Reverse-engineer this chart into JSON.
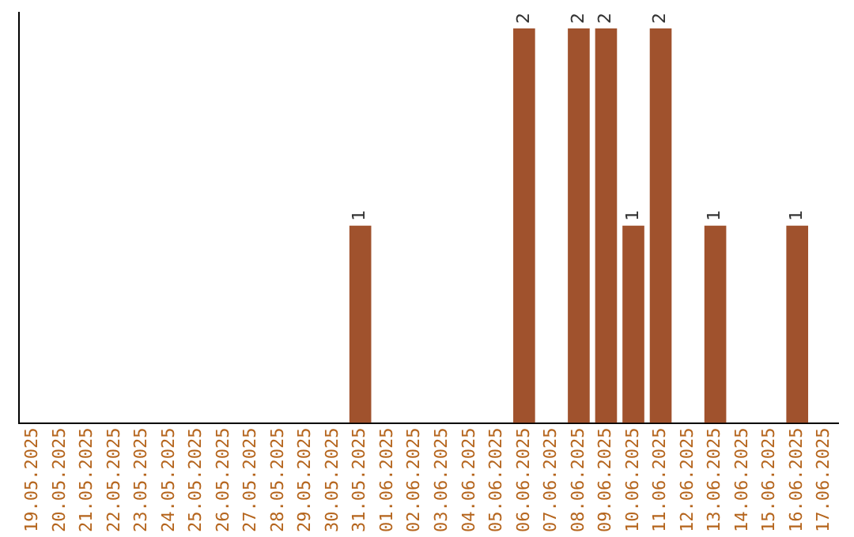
{
  "chart_data": {
    "type": "bar",
    "categories": [
      "19.05.2025",
      "20.05.2025",
      "21.05.2025",
      "22.05.2025",
      "23.05.2025",
      "24.05.2025",
      "25.05.2025",
      "26.05.2025",
      "27.05.2025",
      "28.05.2025",
      "29.05.2025",
      "30.05.2025",
      "31.05.2025",
      "01.06.2025",
      "02.06.2025",
      "03.06.2025",
      "04.06.2025",
      "05.06.2025",
      "06.06.2025",
      "07.06.2025",
      "08.06.2025",
      "09.06.2025",
      "10.06.2025",
      "11.06.2025",
      "12.06.2025",
      "13.06.2025",
      "14.06.2025",
      "15.06.2025",
      "16.06.2025",
      "17.06.2025"
    ],
    "values": [
      null,
      null,
      null,
      null,
      null,
      null,
      null,
      null,
      null,
      null,
      null,
      null,
      1,
      null,
      null,
      null,
      null,
      null,
      2,
      null,
      2,
      2,
      1,
      2,
      null,
      1,
      null,
      null,
      1,
      null
    ],
    "data_labels": true,
    "color": "#a0522d",
    "grid": false,
    "legend": false,
    "tick_labels": "x"
  }
}
